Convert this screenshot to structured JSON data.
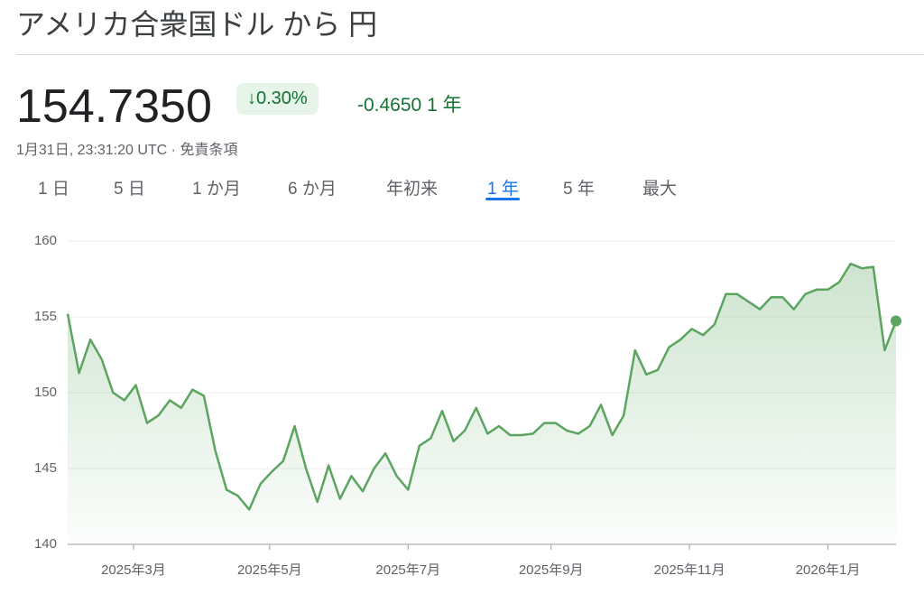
{
  "header": {
    "title": "アメリカ合衆国ドル から 円"
  },
  "quote": {
    "price": "154.7350",
    "change_pct": "↓0.30%",
    "change": "-0.4650",
    "period": "1 年",
    "timestamp": "1月31日, 23:31:20 UTC",
    "separator": "·",
    "disclaimer": "免責条項"
  },
  "tabs": {
    "items": [
      "1 日",
      "5 日",
      "1 か月",
      "6 か月",
      "年初来",
      "1 年",
      "5 年",
      "最大"
    ],
    "active": 5
  },
  "chart_data": {
    "type": "line",
    "x": [
      0,
      5,
      10,
      15,
      20,
      25,
      30,
      35,
      40,
      45,
      50,
      55,
      60,
      65,
      70,
      75,
      80,
      85,
      90,
      95,
      100,
      105,
      110,
      115,
      120,
      125,
      130,
      135,
      140,
      145,
      150,
      155,
      160,
      165,
      170,
      175,
      180,
      185,
      190,
      195,
      200,
      205,
      210,
      215,
      220,
      225,
      230,
      235,
      240,
      245,
      250,
      255,
      260,
      265,
      270,
      275,
      280,
      285,
      290,
      295,
      300,
      305,
      310,
      315,
      320,
      325,
      330,
      335,
      340,
      345,
      350,
      355,
      360,
      365
    ],
    "series": [
      {
        "name": "USD/JPY",
        "color": "#5ba561",
        "values": [
          155.2,
          151.3,
          153.5,
          152.2,
          150,
          149.5,
          150.5,
          148,
          148.5,
          149.5,
          149,
          150.2,
          149.8,
          146.2,
          143.6,
          143.2,
          142.3,
          144,
          144.8,
          145.5,
          147.8,
          145,
          142.8,
          145.2,
          143,
          144.5,
          143.5,
          145,
          146,
          144.5,
          143.6,
          146.5,
          147,
          148.8,
          146.8,
          147.5,
          149,
          147.3,
          147.8,
          147.2,
          147.2,
          147.3,
          148,
          148,
          147.5,
          147.3,
          147.8,
          149.2,
          147.2,
          148.5,
          152.8,
          151.2,
          151.5,
          153,
          153.5,
          154.2,
          153.8,
          154.5,
          156.5,
          156.5,
          156,
          155.5,
          156.3,
          156.3,
          155.5,
          156.5,
          156.8,
          156.8,
          157.3,
          158.5,
          158.2,
          158.3,
          152.8,
          154.735
        ]
      }
    ],
    "xlim": [
      0,
      365
    ],
    "xticks": [
      {
        "value": 29,
        "label": "2025年3月"
      },
      {
        "value": 89,
        "label": "2025年5月"
      },
      {
        "value": 150,
        "label": "2025年7月"
      },
      {
        "value": 213,
        "label": "2025年9月"
      },
      {
        "value": 274,
        "label": "2025年11月"
      },
      {
        "value": 335,
        "label": "2026年1月"
      }
    ],
    "ylim": [
      140,
      160
    ],
    "yticks": [
      140,
      145,
      150,
      155,
      160
    ],
    "grid": true
  }
}
